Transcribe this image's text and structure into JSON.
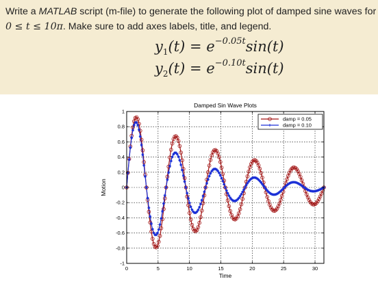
{
  "question": {
    "line1_prefix": "Write a ",
    "line1_italic": "MATLAB",
    "line1_suffix": " script (m-file) to generate the following plot of damped sine waves for",
    "line2_math": "0 ≤ t ≤ 10π",
    "line2_text": ". Make sure to add axes labels, title, and legend.",
    "eq1_lhs": "y",
    "eq1_sub": "1",
    "eq1_mid": "(t) = e",
    "eq1_exp": "−0.05t",
    "eq1_rhs": "sin(t)",
    "eq2_lhs": "y",
    "eq2_sub": "2",
    "eq2_mid": "(t) = e",
    "eq2_exp": "−0.10t",
    "eq2_rhs": "sin(t)"
  },
  "colors": {
    "panel_bg": "#f5ecd2",
    "series1": "#a01010",
    "series2": "#1a2fd6"
  },
  "chart_data": {
    "type": "line",
    "title": "Damped Sin Wave Plots",
    "xlabel": "Time",
    "ylabel": "Motion",
    "xlim": [
      0,
      31.4159
    ],
    "ylim": [
      -1,
      1
    ],
    "xticks": [
      0,
      5,
      10,
      15,
      20,
      25,
      30
    ],
    "yticks": [
      -1,
      -0.8,
      -0.6,
      -0.4,
      -0.2,
      0,
      0.2,
      0.4,
      0.6,
      0.8,
      1
    ],
    "xtick_labels": [
      "0",
      "5",
      "10",
      "15",
      "20",
      "25",
      "30"
    ],
    "ytick_labels": [
      "-1",
      "-0.8",
      "-0.6",
      "-0.4",
      "-0.2",
      "0",
      "0.2",
      "0.4",
      "0.6",
      "0.8",
      "1"
    ],
    "grid": true,
    "legend_position": "top-right",
    "series": [
      {
        "name": "damp = 0.05",
        "damping": 0.05,
        "marker": "circle",
        "line": "solid"
      },
      {
        "name": "damp = 0.10",
        "damping": 0.1,
        "marker": "star",
        "line": "solid"
      }
    ]
  }
}
